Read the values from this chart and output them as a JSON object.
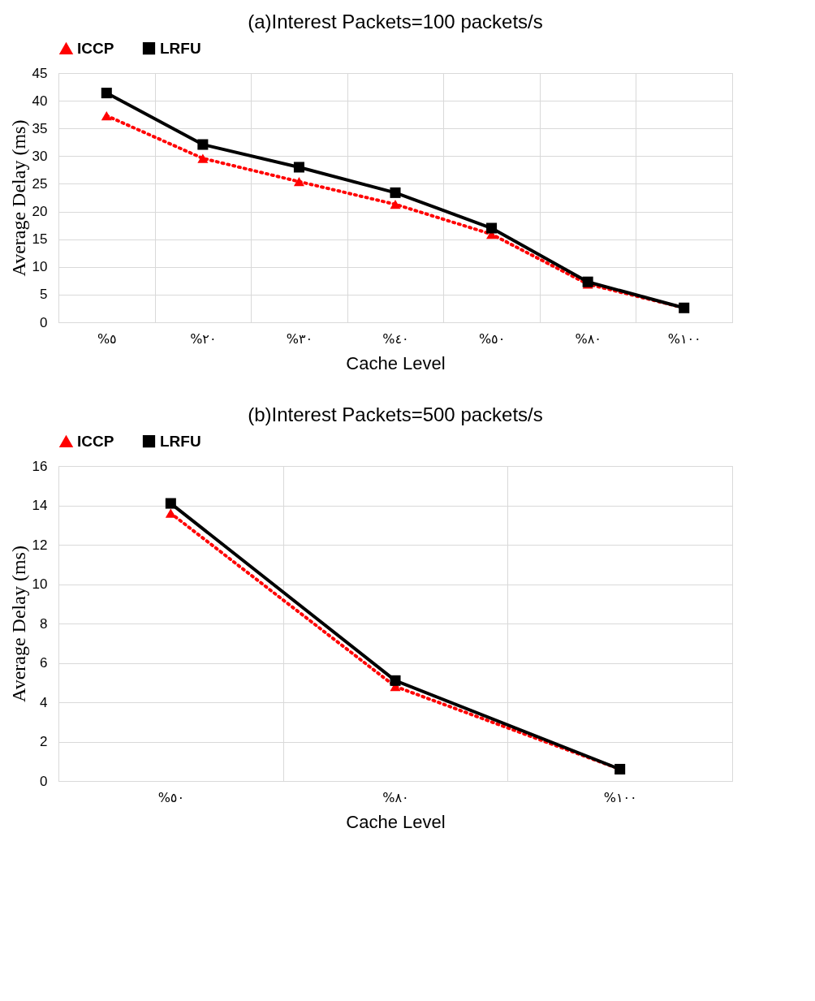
{
  "chart_data": [
    {
      "type": "line",
      "title": "(a)Interest Packets=100 packets/s",
      "xlabel": "Cache Level",
      "ylabel": "Average Delay (ms)",
      "categories": [
        "%٥",
        "%٢٠",
        "%٣٠",
        "%٤٠",
        "%٥٠",
        "%٨٠",
        "%١٠٠"
      ],
      "series": [
        {
          "name": "ICCP",
          "color": "#ff0000",
          "marker": "triangle",
          "line_style": "dotted",
          "values": [
            37.3,
            29.6,
            25.4,
            21.3,
            15.9,
            6.9,
            2.6
          ]
        },
        {
          "name": "LRFU",
          "color": "#000000",
          "marker": "square",
          "line_style": "solid",
          "values": [
            41.4,
            32.1,
            28.0,
            23.4,
            17.0,
            7.3,
            2.6
          ]
        }
      ],
      "ylim": [
        0,
        45
      ],
      "yticks": [
        0,
        5,
        10,
        15,
        20,
        25,
        30,
        35,
        40,
        45
      ],
      "grid": true,
      "legend": "top"
    },
    {
      "type": "line",
      "title": "(b)Interest Packets=500 packets/s",
      "xlabel": "Cache Level",
      "ylabel": "Average Delay (ms)",
      "categories": [
        "%٥٠",
        "%٨٠",
        "%١٠٠"
      ],
      "series": [
        {
          "name": "ICCP",
          "color": "#ff0000",
          "marker": "triangle",
          "line_style": "dotted",
          "values": [
            13.6,
            4.8,
            0.6
          ]
        },
        {
          "name": "LRFU",
          "color": "#000000",
          "marker": "square",
          "line_style": "solid",
          "values": [
            14.1,
            5.1,
            0.6
          ]
        }
      ],
      "ylim": [
        0,
        16
      ],
      "yticks": [
        0,
        2,
        4,
        6,
        8,
        10,
        12,
        14,
        16
      ],
      "grid": true,
      "legend": "top"
    }
  ]
}
